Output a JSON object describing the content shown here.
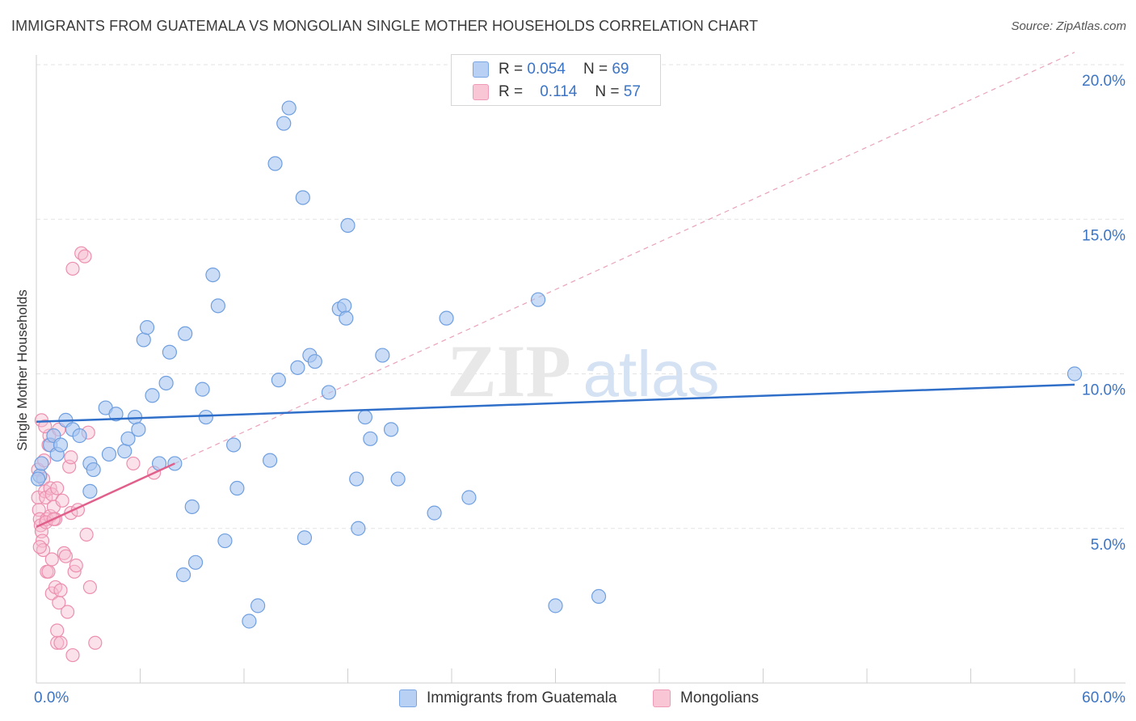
{
  "header": {
    "title": "IMMIGRANTS FROM GUATEMALA VS MONGOLIAN SINGLE MOTHER HOUSEHOLDS CORRELATION CHART",
    "source": "Source: ZipAtlas.com"
  },
  "legend": {
    "rows": [
      {
        "r_label": "R =",
        "r_value": "0.054",
        "n_label": "N =",
        "n_value": "69"
      },
      {
        "r_label": "R =",
        "r_value": "0.114",
        "n_label": "N =",
        "n_value": "57"
      }
    ]
  },
  "watermark": {
    "zip": "ZIP",
    "atlas": "atlas"
  },
  "colors": {
    "blue_fill": "#a9c7f0",
    "blue_stroke": "#6f9fe0",
    "blue_line": "#2f6fc9",
    "pink_fill": "#f7bcd0",
    "pink_stroke": "#ec8fae",
    "pink_line": "#e0608b",
    "axis_text": "#3b74c4",
    "grid": "#e3e3e3"
  },
  "chart_data": {
    "type": "scatter",
    "title": "IMMIGRANTS FROM GUATEMALA VS MONGOLIAN SINGLE MOTHER HOUSEHOLDS CORRELATION CHART",
    "xlabel": "",
    "ylabel": "Single Mother Households",
    "xlim": [
      0,
      60
    ],
    "ylim": [
      0,
      20
    ],
    "x_tick_labels": [
      "0.0%",
      "60.0%"
    ],
    "y_ticks": [
      5,
      10,
      15,
      20
    ],
    "y_tick_labels": [
      "5.0%",
      "10.0%",
      "15.0%",
      "20.0%"
    ],
    "series": [
      {
        "name": "Immigrants from Guatemala",
        "color": "blue",
        "trend": {
          "x": [
            0,
            60
          ],
          "y": [
            8.45,
            9.65
          ],
          "style": "solid"
        },
        "points": [
          [
            0.2,
            6.7
          ],
          [
            0.3,
            7.1
          ],
          [
            0.8,
            7.7
          ],
          [
            1.0,
            8.0
          ],
          [
            1.2,
            7.4
          ],
          [
            1.4,
            7.7
          ],
          [
            1.7,
            8.5
          ],
          [
            2.1,
            8.2
          ],
          [
            2.5,
            8.0
          ],
          [
            3.1,
            7.1
          ],
          [
            3.3,
            6.9
          ],
          [
            3.1,
            6.2
          ],
          [
            4.0,
            8.9
          ],
          [
            4.2,
            7.4
          ],
          [
            4.6,
            8.7
          ],
          [
            5.1,
            7.5
          ],
          [
            5.3,
            7.9
          ],
          [
            5.7,
            8.6
          ],
          [
            5.9,
            8.2
          ],
          [
            6.2,
            11.1
          ],
          [
            6.4,
            11.5
          ],
          [
            6.7,
            9.3
          ],
          [
            7.1,
            7.1
          ],
          [
            7.5,
            9.7
          ],
          [
            7.7,
            10.7
          ],
          [
            8.0,
            7.1
          ],
          [
            8.6,
            11.3
          ],
          [
            9.0,
            5.7
          ],
          [
            9.2,
            3.9
          ],
          [
            8.5,
            3.5
          ],
          [
            9.6,
            9.5
          ],
          [
            9.8,
            8.6
          ],
          [
            10.2,
            13.2
          ],
          [
            10.5,
            12.2
          ],
          [
            10.9,
            4.6
          ],
          [
            11.4,
            7.7
          ],
          [
            11.6,
            6.3
          ],
          [
            12.3,
            2.0
          ],
          [
            12.8,
            2.5
          ],
          [
            13.5,
            7.2
          ],
          [
            13.8,
            16.8
          ],
          [
            14.0,
            9.8
          ],
          [
            14.3,
            18.1
          ],
          [
            14.6,
            18.6
          ],
          [
            15.1,
            10.2
          ],
          [
            15.4,
            15.7
          ],
          [
            15.5,
            4.7
          ],
          [
            15.8,
            10.6
          ],
          [
            16.1,
            10.4
          ],
          [
            16.9,
            9.4
          ],
          [
            17.5,
            12.1
          ],
          [
            17.8,
            12.2
          ],
          [
            17.9,
            11.8
          ],
          [
            18.0,
            14.8
          ],
          [
            18.5,
            6.6
          ],
          [
            18.6,
            5.0
          ],
          [
            19.0,
            8.6
          ],
          [
            19.3,
            7.9
          ],
          [
            20.0,
            10.6
          ],
          [
            20.5,
            8.2
          ],
          [
            20.9,
            6.6
          ],
          [
            23.0,
            5.5
          ],
          [
            23.7,
            11.8
          ],
          [
            25.0,
            6.0
          ],
          [
            29.0,
            12.4
          ],
          [
            30.0,
            2.5
          ],
          [
            32.5,
            2.8
          ],
          [
            60.0,
            10.0
          ],
          [
            0.1,
            6.6
          ]
        ]
      },
      {
        "name": "Mongolians",
        "color": "pink",
        "trend": {
          "x": [
            0,
            8.0
          ],
          "y": [
            5.05,
            7.1
          ],
          "style": "solid",
          "extended": {
            "x": [
              8.0,
              60
            ],
            "y": [
              7.1,
              20.4
            ],
            "style": "dashed"
          }
        },
        "points": [
          [
            0.1,
            6.9
          ],
          [
            0.1,
            6.0
          ],
          [
            0.15,
            5.6
          ],
          [
            0.2,
            5.3
          ],
          [
            0.25,
            5.1
          ],
          [
            0.3,
            4.9
          ],
          [
            0.35,
            4.6
          ],
          [
            0.4,
            4.3
          ],
          [
            0.4,
            6.6
          ],
          [
            0.5,
            6.2
          ],
          [
            0.55,
            6.0
          ],
          [
            0.6,
            5.3
          ],
          [
            0.6,
            3.6
          ],
          [
            0.7,
            3.6
          ],
          [
            0.7,
            7.7
          ],
          [
            0.75,
            8.0
          ],
          [
            0.8,
            6.3
          ],
          [
            0.8,
            5.4
          ],
          [
            0.9,
            2.9
          ],
          [
            0.9,
            6.1
          ],
          [
            0.9,
            4.0
          ],
          [
            1.0,
            5.7
          ],
          [
            1.1,
            5.3
          ],
          [
            1.1,
            3.1
          ],
          [
            1.2,
            1.3
          ],
          [
            1.2,
            1.7
          ],
          [
            1.2,
            6.3
          ],
          [
            1.3,
            8.2
          ],
          [
            1.3,
            2.6
          ],
          [
            1.4,
            1.3
          ],
          [
            1.5,
            5.9
          ],
          [
            1.4,
            3.0
          ],
          [
            1.6,
            4.2
          ],
          [
            1.7,
            4.1
          ],
          [
            1.8,
            2.3
          ],
          [
            1.9,
            7.0
          ],
          [
            2.0,
            7.3
          ],
          [
            2.0,
            5.5
          ],
          [
            2.1,
            0.9
          ],
          [
            2.1,
            13.4
          ],
          [
            2.2,
            3.6
          ],
          [
            2.3,
            3.8
          ],
          [
            2.4,
            5.6
          ],
          [
            2.6,
            13.9
          ],
          [
            2.8,
            13.8
          ],
          [
            2.9,
            4.8
          ],
          [
            3.0,
            8.1
          ],
          [
            3.1,
            3.1
          ],
          [
            3.4,
            1.3
          ],
          [
            5.6,
            7.1
          ],
          [
            6.8,
            6.8
          ],
          [
            0.3,
            8.5
          ],
          [
            0.45,
            7.2
          ],
          [
            0.5,
            8.3
          ],
          [
            0.55,
            5.2
          ],
          [
            0.2,
            4.4
          ],
          [
            1.0,
            5.3
          ]
        ]
      }
    ]
  },
  "bottom_legend": [
    {
      "label": "Immigrants from Guatemala"
    },
    {
      "label": "Mongolians"
    }
  ]
}
